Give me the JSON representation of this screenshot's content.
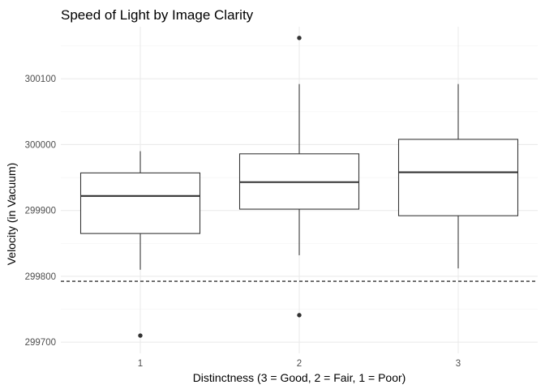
{
  "chart_data": {
    "type": "boxplot",
    "title": "Speed of Light by Image Clarity",
    "xlabel": "Distinctness (3 = Good, 2 = Fair, 1 = Poor)",
    "ylabel": "Velocity (in Vacuum)",
    "categories": [
      "1",
      "2",
      "3"
    ],
    "ylim": [
      299683,
      300179
    ],
    "y_ticks": [
      299700,
      299800,
      299900,
      300000,
      300100
    ],
    "y_tick_labels": [
      "299700",
      "299800",
      "299900",
      "300000",
      "300100"
    ],
    "grid": true,
    "reference_line": {
      "y": 299792.5,
      "style": "dashed"
    },
    "boxes": [
      {
        "category": "1",
        "whisker_low": 299810,
        "q1": 299865,
        "median": 299922,
        "q3": 299957,
        "whisker_high": 299990,
        "outliers": [
          299710
        ]
      },
      {
        "category": "2",
        "whisker_low": 299832,
        "q1": 299902,
        "median": 299943,
        "q3": 299986,
        "whisker_high": 300092,
        "outliers": [
          299741,
          300162
        ]
      },
      {
        "category": "3",
        "whisker_low": 299812,
        "q1": 299892,
        "median": 299958,
        "q3": 300008,
        "whisker_high": 300092,
        "outliers": []
      }
    ]
  }
}
